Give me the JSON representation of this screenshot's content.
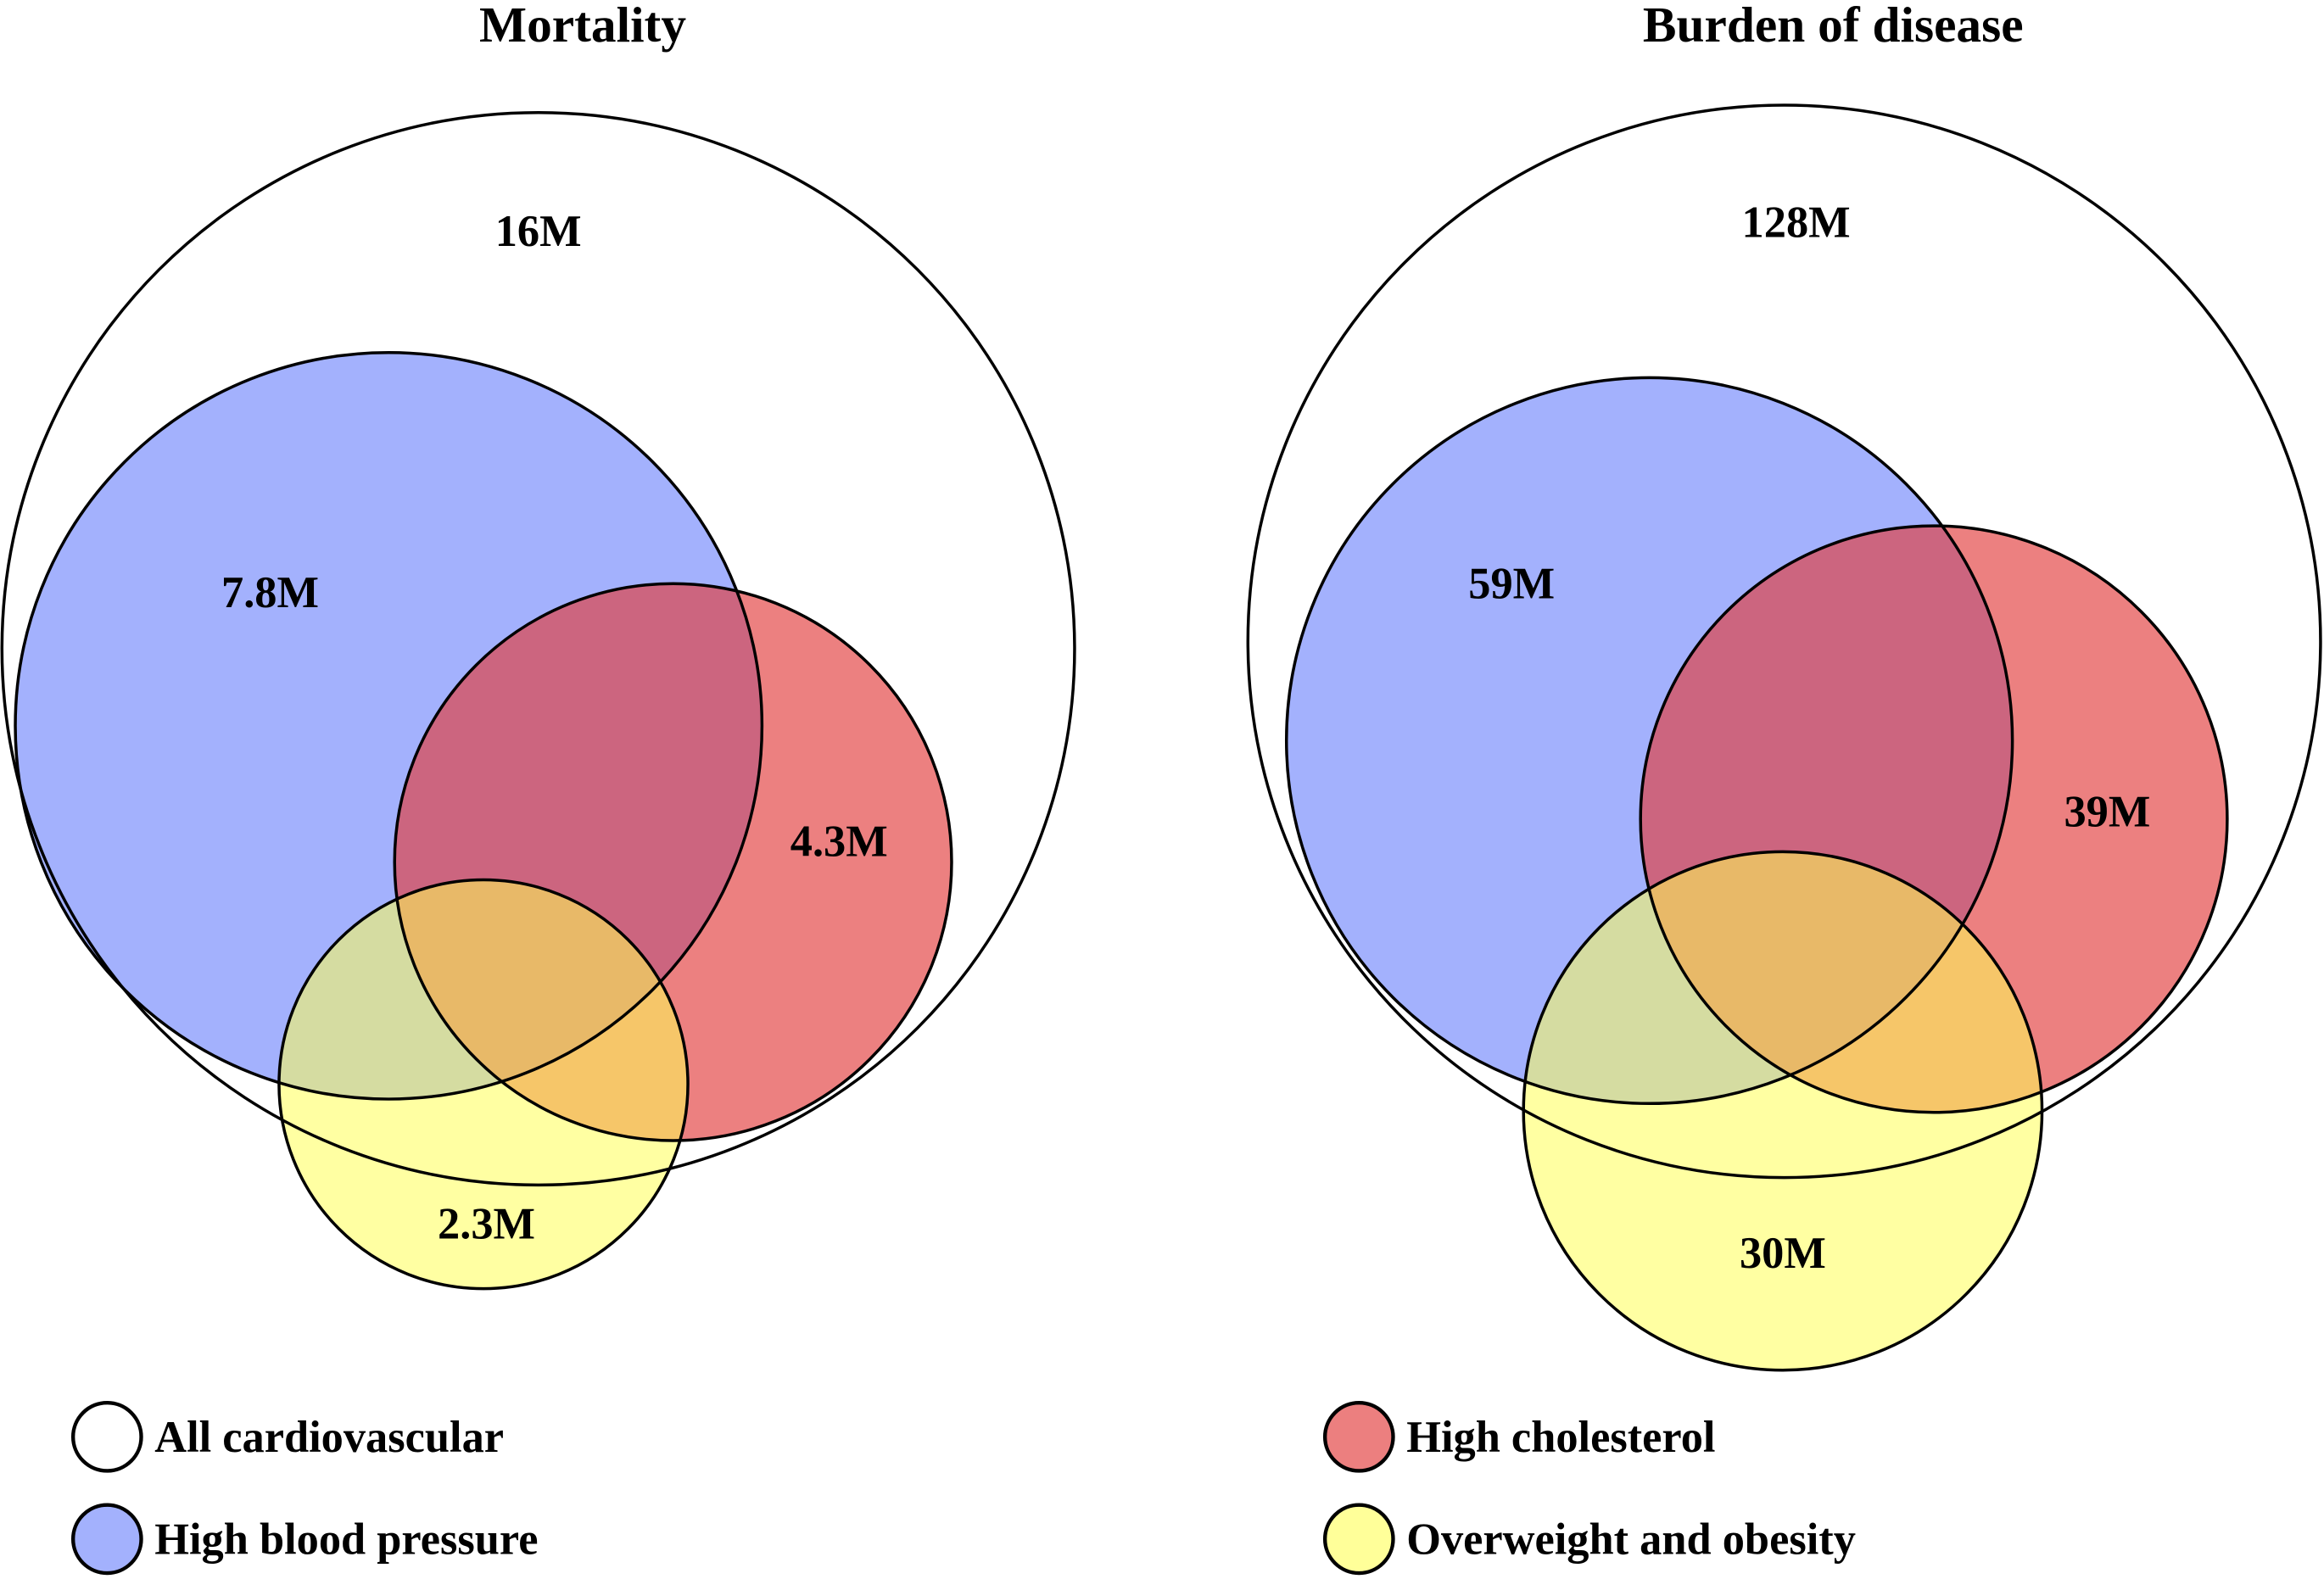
{
  "chart_data": [
    {
      "type": "venn",
      "title": "Mortality",
      "sets": [
        {
          "key": "all",
          "label": "All cardiovascular",
          "value": "16M"
        },
        {
          "key": "bp",
          "label": "High blood pressure",
          "value": "7.8M"
        },
        {
          "key": "chol",
          "label": "High cholesterol",
          "value": "4.3M"
        },
        {
          "key": "obes",
          "label": "Overweight and obesity",
          "value": "2.3M"
        }
      ]
    },
    {
      "type": "venn",
      "title": "Burden of disease",
      "sets": [
        {
          "key": "all",
          "label": "All cardiovascular",
          "value": "128M"
        },
        {
          "key": "bp",
          "label": "High blood pressure",
          "value": "59M"
        },
        {
          "key": "chol",
          "label": "High cholesterol",
          "value": "39M"
        },
        {
          "key": "obes",
          "label": "Overweight and obesity",
          "value": "30M"
        }
      ]
    }
  ],
  "legend": [
    {
      "label": "All cardiovascular",
      "color": "#ffffff"
    },
    {
      "label": "High blood pressure",
      "color": "#a3b1fd"
    },
    {
      "label": "High cholesterol",
      "color": "#ec7f7f"
    },
    {
      "label": "Overweight and obesity",
      "color": "#ffff99"
    }
  ],
  "colors": {
    "all": "#ffffff",
    "bp": "#a3b1fd",
    "chol": "#e23c3c",
    "obes": "#ffff55"
  }
}
